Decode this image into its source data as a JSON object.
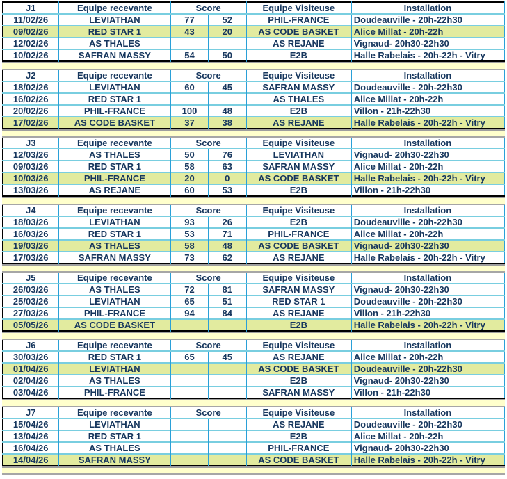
{
  "theme": {
    "text_color": "#17375e",
    "highlight_color": "#e2eb9f",
    "grid_horizontal_color": "#79cee0",
    "grid_vertical_color": "#2aa0d8",
    "outer_border_color": "#000000",
    "gap_band_color": "#ffffcc",
    "gap_line_color": "#a0a0a0"
  },
  "columns": {
    "home": "Equipe recevante",
    "score": "Score",
    "away": "Equipe Visiteuse",
    "venue": "Installation"
  },
  "rounds": [
    {
      "label": "J1",
      "matches": [
        {
          "date": "11/02/26",
          "home": "LEVIATHAN",
          "score1": "77",
          "score2": "52",
          "away": "PHIL-FRANCE",
          "venue": "Doudeauville - 20h-22h30",
          "highlight": false,
          "misspelled_prefix": ""
        },
        {
          "date": "09/02/26",
          "home": "RED STAR 1",
          "score1": "43",
          "score2": "20",
          "away": "AS CODE BASKET",
          "venue": "Alice Millat - 20h-22h",
          "highlight": true,
          "misspelled_prefix": ""
        },
        {
          "date": "12/02/26",
          "home": "AS THALES",
          "score1": "",
          "score2": "",
          "away": "AS REJANE",
          "venue": "Vignaud- 20h30-22h30",
          "highlight": false,
          "misspelled_prefix": "Vignaud"
        },
        {
          "date": "10/02/26",
          "home": "SAFRAN MASSY",
          "score1": "54",
          "score2": "50",
          "away": "E2B",
          "venue": "Halle Rabelais - 20h-22h - Vitry",
          "highlight": false,
          "misspelled_prefix": ""
        }
      ]
    },
    {
      "label": "J2",
      "matches": [
        {
          "date": "18/02/26",
          "home": "LEVIATHAN",
          "score1": "60",
          "score2": "45",
          "away": "SAFRAN MASSY",
          "venue": "Doudeauville - 20h-22h30",
          "highlight": false,
          "misspelled_prefix": ""
        },
        {
          "date": "16/02/26",
          "home": "RED STAR 1",
          "score1": "",
          "score2": "",
          "away": "AS THALES",
          "venue": "Alice Millat - 20h-22h",
          "highlight": false,
          "misspelled_prefix": ""
        },
        {
          "date": "20/02/26",
          "home": "PHIL-FRANCE",
          "score1": "100",
          "score2": "48",
          "away": "E2B",
          "venue": "Villon - 21h-22h30",
          "highlight": false,
          "misspelled_prefix": ""
        },
        {
          "date": "17/02/26",
          "home": "AS CODE BASKET",
          "score1": "37",
          "score2": "38",
          "away": "AS REJANE",
          "venue": "Halle Rabelais - 20h-22h - Vitry",
          "highlight": true,
          "misspelled_prefix": ""
        }
      ]
    },
    {
      "label": "J3",
      "matches": [
        {
          "date": "12/03/26",
          "home": "AS THALES",
          "score1": "50",
          "score2": "76",
          "away": "LEVIATHAN",
          "venue": "Vignaud- 20h30-22h30",
          "highlight": false,
          "misspelled_prefix": "Vignaud"
        },
        {
          "date": "09/03/26",
          "home": "RED STAR 1",
          "score1": "58",
          "score2": "63",
          "away": "SAFRAN MASSY",
          "venue": "Alice Millat - 20h-22h",
          "highlight": false,
          "misspelled_prefix": ""
        },
        {
          "date": "10/03/26",
          "home": "PHIL-FRANCE",
          "score1": "20",
          "score2": "0",
          "away": "AS CODE BASKET",
          "venue": "Halle Rabelais - 20h-22h - Vitry",
          "highlight": true,
          "misspelled_prefix": ""
        },
        {
          "date": "13/03/26",
          "home": "AS REJANE",
          "score1": "60",
          "score2": "53",
          "away": "E2B",
          "venue": "Villon - 21h-22h30",
          "highlight": false,
          "misspelled_prefix": ""
        }
      ]
    },
    {
      "label": "J4",
      "matches": [
        {
          "date": "18/03/26",
          "home": "LEVIATHAN",
          "score1": "93",
          "score2": "26",
          "away": "E2B",
          "venue": "Doudeauville - 20h-22h30",
          "highlight": false,
          "misspelled_prefix": ""
        },
        {
          "date": "16/03/26",
          "home": "RED STAR 1",
          "score1": "53",
          "score2": "71",
          "away": "PHIL-FRANCE",
          "venue": "Alice Millat - 20h-22h",
          "highlight": false,
          "misspelled_prefix": ""
        },
        {
          "date": "19/03/26",
          "home": "AS THALES",
          "score1": "58",
          "score2": "48",
          "away": "AS CODE BASKET",
          "venue": "Vignaud- 20h30-22h30",
          "highlight": true,
          "misspelled_prefix": "Vignaud"
        },
        {
          "date": "17/03/26",
          "home": "SAFRAN MASSY",
          "score1": "73",
          "score2": "62",
          "away": "AS REJANE",
          "venue": "Halle Rabelais - 20h-22h - Vitry",
          "highlight": false,
          "misspelled_prefix": ""
        }
      ]
    },
    {
      "label": "J5",
      "matches": [
        {
          "date": "26/03/26",
          "home": "AS THALES",
          "score1": "72",
          "score2": "81",
          "away": "SAFRAN MASSY",
          "venue": "Vignaud- 20h30-22h30",
          "highlight": false,
          "misspelled_prefix": "Vignaud"
        },
        {
          "date": "25/03/26",
          "home": "LEVIATHAN",
          "score1": "65",
          "score2": "51",
          "away": "RED STAR 1",
          "venue": "Doudeauville - 20h-22h30",
          "highlight": false,
          "misspelled_prefix": ""
        },
        {
          "date": "27/03/26",
          "home": "PHIL-FRANCE",
          "score1": "94",
          "score2": "84",
          "away": "AS REJANE",
          "venue": "Villon - 21h-22h30",
          "highlight": false,
          "misspelled_prefix": ""
        },
        {
          "date": "05/05/26",
          "home": "AS CODE BASKET",
          "score1": "",
          "score2": "",
          "away": "E2B",
          "venue": "Halle Rabelais - 20h-22h - Vitry",
          "highlight": true,
          "misspelled_prefix": ""
        }
      ]
    },
    {
      "label": "J6",
      "matches": [
        {
          "date": "30/03/26",
          "home": "RED STAR 1",
          "score1": "65",
          "score2": "45",
          "away": "AS REJANE",
          "venue": "Alice Millat - 20h-22h",
          "highlight": false,
          "misspelled_prefix": ""
        },
        {
          "date": "01/04/26",
          "home": "LEVIATHAN",
          "score1": "",
          "score2": "",
          "away": "AS CODE BASKET",
          "venue": "Doudeauville - 20h-22h30",
          "highlight": true,
          "misspelled_prefix": ""
        },
        {
          "date": "02/04/26",
          "home": "AS THALES",
          "score1": "",
          "score2": "",
          "away": "E2B",
          "venue": "Vignaud- 20h30-22h30",
          "highlight": false,
          "misspelled_prefix": "Vignaud"
        },
        {
          "date": "03/04/26",
          "home": "PHIL-FRANCE",
          "score1": "",
          "score2": "",
          "away": "SAFRAN MASSY",
          "venue": "Villon - 21h-22h30",
          "highlight": false,
          "misspelled_prefix": ""
        }
      ]
    },
    {
      "label": "J7",
      "matches": [
        {
          "date": "15/04/26",
          "home": "LEVIATHAN",
          "score1": "",
          "score2": "",
          "away": "AS REJANE",
          "venue": "Doudeauville - 20h-22h30",
          "highlight": false,
          "misspelled_prefix": ""
        },
        {
          "date": "13/04/26",
          "home": "RED STAR 1",
          "score1": "",
          "score2": "",
          "away": "E2B",
          "venue": "Alice Millat - 20h-22h",
          "highlight": false,
          "misspelled_prefix": ""
        },
        {
          "date": "16/04/26",
          "home": "AS THALES",
          "score1": "",
          "score2": "",
          "away": "PHIL-FRANCE",
          "venue": "Vignaud- 20h30-22h30",
          "highlight": false,
          "misspelled_prefix": "Vignaud"
        },
        {
          "date": "14/04/26",
          "home": "SAFRAN MASSY",
          "score1": "",
          "score2": "",
          "away": "AS CODE BASKET",
          "venue": "Halle Rabelais - 20h-22h - Vitry",
          "highlight": true,
          "misspelled_prefix": ""
        }
      ]
    }
  ]
}
